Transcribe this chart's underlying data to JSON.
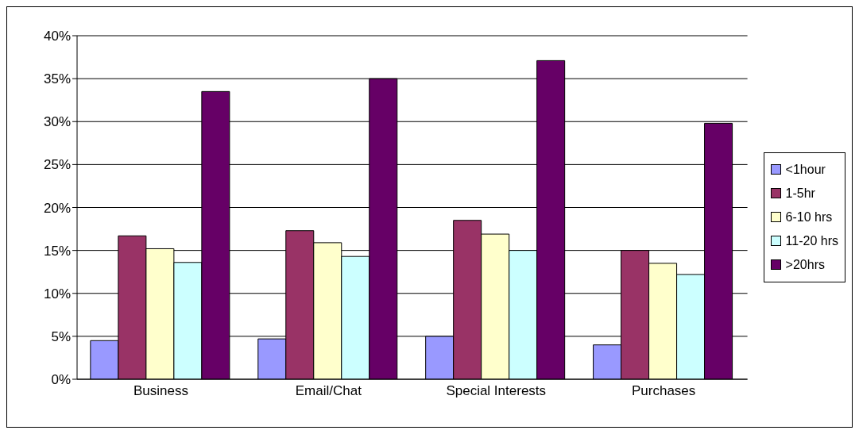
{
  "chart_data": {
    "type": "bar",
    "categories": [
      "Business",
      "Email/Chat",
      "Special Interests",
      "Purchases"
    ],
    "series": [
      {
        "name": "<1hour",
        "color": "#9999ff",
        "values": [
          4.5,
          4.7,
          5.0,
          4.0
        ]
      },
      {
        "name": "1-5hr",
        "color": "#993366",
        "values": [
          16.7,
          17.3,
          18.5,
          15.0
        ]
      },
      {
        "name": "6-10 hrs",
        "color": "#ffffcc",
        "values": [
          15.2,
          15.9,
          16.9,
          13.5
        ]
      },
      {
        "name": "11-20 hrs",
        "color": "#ccffff",
        "values": [
          13.6,
          14.3,
          15.0,
          12.2
        ]
      },
      {
        "name": ">20hrs",
        "color": "#660066",
        "values": [
          33.5,
          35.0,
          37.1,
          29.8
        ]
      }
    ],
    "ylim": [
      0,
      40
    ],
    "yticks": [
      {
        "value": 0,
        "label": "0%"
      },
      {
        "value": 5,
        "label": "5%"
      },
      {
        "value": 10,
        "label": "10%"
      },
      {
        "value": 15,
        "label": "15%"
      },
      {
        "value": 20,
        "label": "20%"
      },
      {
        "value": 25,
        "label": "25%"
      },
      {
        "value": 30,
        "label": "30%"
      },
      {
        "value": 35,
        "label": "35%"
      },
      {
        "value": 40,
        "label": "40%"
      }
    ],
    "grid": "y",
    "legend": "right"
  }
}
